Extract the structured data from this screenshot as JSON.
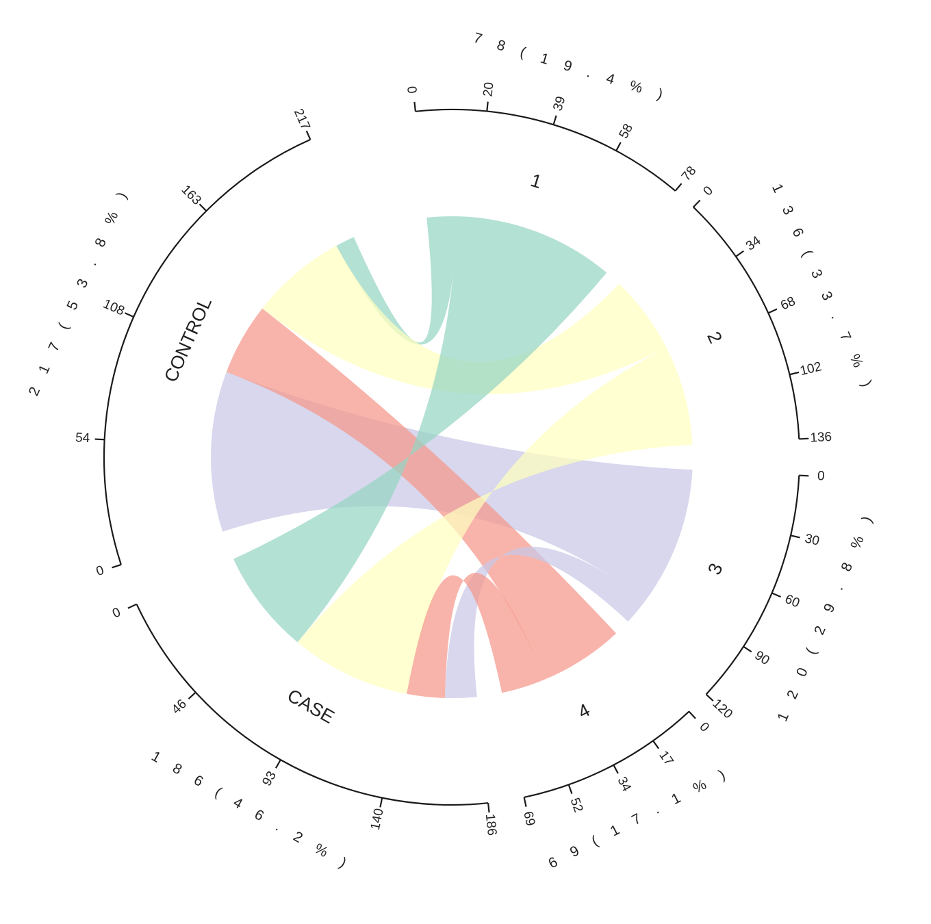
{
  "chart_data": {
    "type": "chord",
    "sectors": [
      {
        "id": "s1",
        "label": "1",
        "total": 78,
        "total_label": "7 8 ( 1 9 . 4 % )",
        "ticks": [
          0,
          20,
          39,
          58,
          78
        ],
        "color": "#96d5c4"
      },
      {
        "id": "s2",
        "label": "2",
        "total": 136,
        "total_label": "1 3 6 ( 3 3 . 7 % )",
        "ticks": [
          0,
          34,
          68,
          102,
          136
        ],
        "color": "#ffffbf"
      },
      {
        "id": "s3",
        "label": "3",
        "total": 120,
        "total_label": "1 2 0 ( 2 9 . 8 % )",
        "ticks": [
          0,
          30,
          60,
          90,
          120
        ],
        "color": "#c9c8e6"
      },
      {
        "id": "s4",
        "label": "4",
        "total": 69,
        "total_label": "6 9 ( 1 7 . 1 % )",
        "ticks": [
          0,
          17,
          34,
          52,
          69
        ],
        "color": "#f5978b"
      },
      {
        "id": "case",
        "label": "CASE",
        "total": 186,
        "total_label": "1 8 6 ( 4 6 . 2 % )",
        "ticks": [
          0,
          46,
          93,
          140,
          186
        ],
        "color": "#f0f0f0"
      },
      {
        "id": "control",
        "label": "CONTROL",
        "total": 217,
        "total_label": "2 1 7 ( 5 3 . 8 % )",
        "ticks": [
          0,
          54,
          108,
          163,
          217
        ],
        "color": "#f0f0f0"
      }
    ],
    "links": [
      {
        "group": "s1",
        "condition": "control",
        "value": 12
      },
      {
        "group": "s1",
        "condition": "case",
        "value": 66
      },
      {
        "group": "s2",
        "condition": "control",
        "value": 60
      },
      {
        "group": "s2",
        "condition": "case",
        "value": 76
      },
      {
        "group": "s3",
        "condition": "control",
        "value": 100
      },
      {
        "group": "s3",
        "condition": "case",
        "value": 20
      },
      {
        "group": "s4",
        "condition": "control",
        "value": 45
      },
      {
        "group": "s4",
        "condition": "case",
        "value": 24
      }
    ]
  }
}
